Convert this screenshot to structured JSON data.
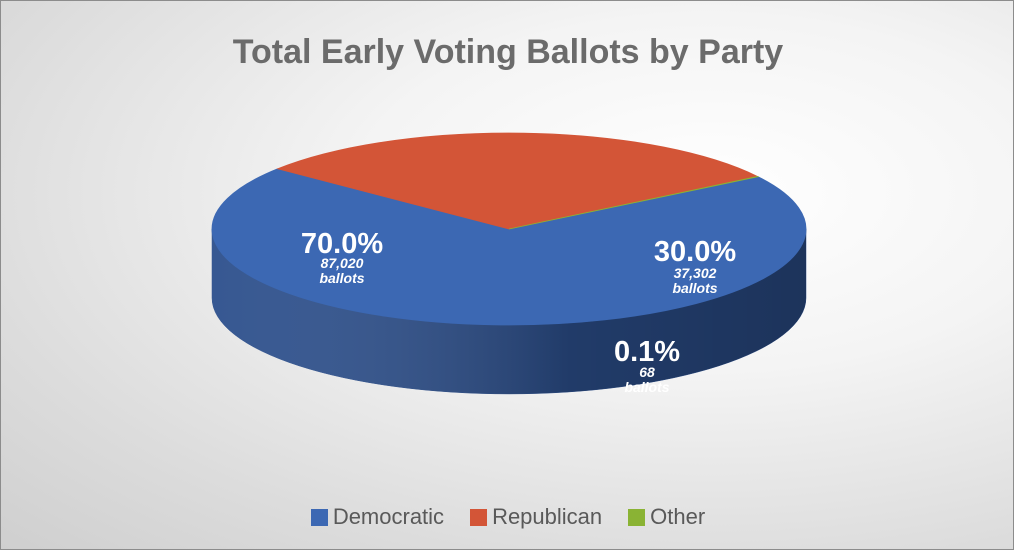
{
  "chart_data": {
    "type": "pie",
    "title": "Total Early Voting Ballots by Party",
    "slices": [
      {
        "name": "Democratic",
        "percent_label": "70.0%",
        "value": 87020,
        "value_label": "87,020",
        "unit_label": "ballots",
        "color": "#3c68b3",
        "side_color": "#2c4f8c"
      },
      {
        "name": "Republican",
        "percent_label": "30.0%",
        "value": 37302,
        "value_label": "37,302",
        "unit_label": "ballots",
        "color": "#d35537",
        "side_color": "#5a1a12"
      },
      {
        "name": "Other",
        "percent_label": "0.1%",
        "value": 68,
        "value_label": "68",
        "unit_label": "ballots",
        "color": "#8ab334",
        "side_color": "#6b8b25"
      }
    ],
    "legend_position": "bottom"
  }
}
